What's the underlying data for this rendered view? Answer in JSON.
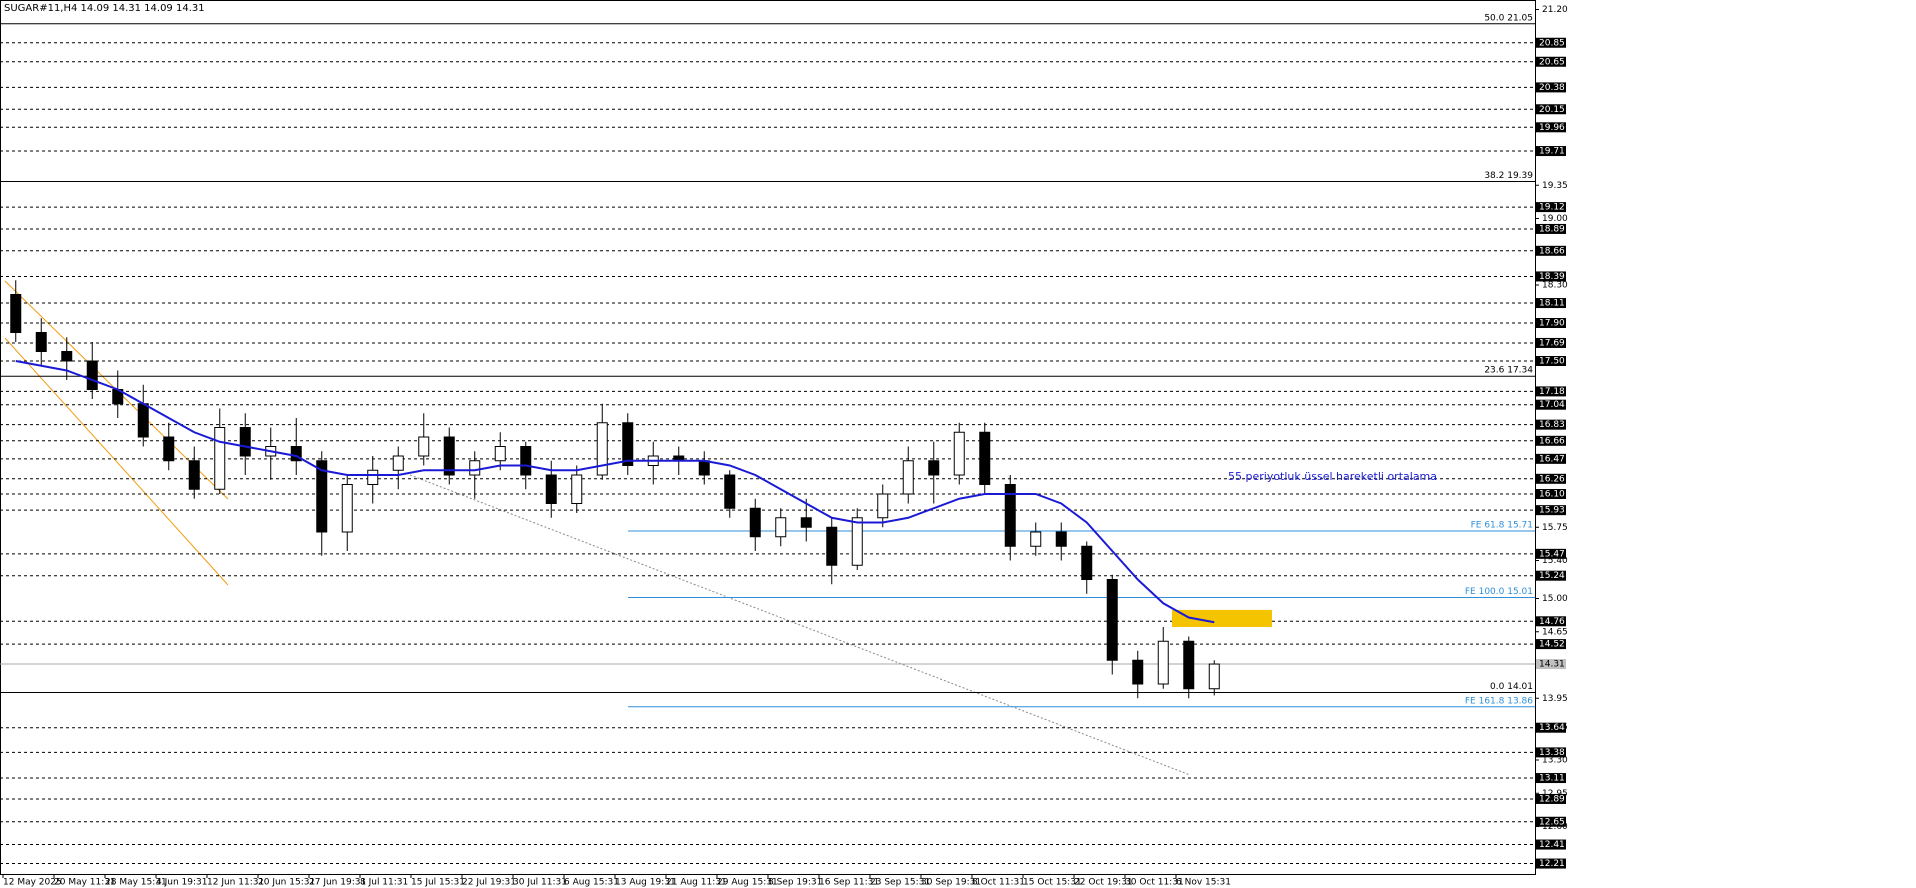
{
  "chart_data": {
    "type": "candlestick",
    "title": "SUGAR#11,H4  14.09 14.31 14.09 14.31",
    "categories": [
      "12 May 2025",
      null,
      "20 May 11:31",
      null,
      "28 May 15:31",
      null,
      "4 Jun 19:31",
      null,
      "12 Jun 11:31",
      null,
      "20 Jun 15:31",
      null,
      "27 Jun 19:31",
      null,
      "8 Jul 11:31",
      null,
      "15 Jul 15:31",
      null,
      "22 Jul 19:31",
      null,
      "30 Jul 11:31",
      null,
      "6 Aug 15:31",
      null,
      "13 Aug 19:31",
      null,
      "21 Aug 11:31",
      null,
      "29 Aug 15:31",
      null,
      "8 Sep 19:31",
      null,
      "16 Sep 11:31",
      null,
      "23 Sep 15:31",
      null,
      "30 Sep 19:31",
      null,
      "8 Oct 11:31",
      null,
      "15 Oct 15:31",
      null,
      "22 Oct 19:31",
      null,
      "30 Oct 11:31",
      null,
      "6 Nov 15:31",
      null
    ],
    "open": [
      18.2,
      17.8,
      17.6,
      17.5,
      17.2,
      17.05,
      16.7,
      16.45,
      16.15,
      16.8,
      16.5,
      16.6,
      16.45,
      15.7,
      16.2,
      16.35,
      16.5,
      16.7,
      16.3,
      16.45,
      16.6,
      16.3,
      16.0,
      16.3,
      16.85,
      16.4,
      16.5,
      16.45,
      16.3,
      15.95,
      15.65,
      15.85,
      15.75,
      15.35,
      15.85,
      16.1,
      16.45,
      16.3,
      16.75,
      16.2,
      15.55,
      15.7,
      15.55,
      15.2,
      14.35,
      14.1,
      14.55,
      14.05
    ],
    "high": [
      18.35,
      17.95,
      17.75,
      17.7,
      17.4,
      17.25,
      16.85,
      16.6,
      17.0,
      16.95,
      16.8,
      16.9,
      16.55,
      16.3,
      16.5,
      16.6,
      16.95,
      16.8,
      16.55,
      16.75,
      16.65,
      16.45,
      16.4,
      17.05,
      16.95,
      16.65,
      16.6,
      16.55,
      16.35,
      16.05,
      15.95,
      16.05,
      15.85,
      15.95,
      16.2,
      16.6,
      16.65,
      16.85,
      16.85,
      16.3,
      15.8,
      15.8,
      15.6,
      15.25,
      14.45,
      14.7,
      14.6,
      14.35
    ],
    "low": [
      17.7,
      17.45,
      17.3,
      17.1,
      16.9,
      16.6,
      16.35,
      16.05,
      16.1,
      16.3,
      16.25,
      16.3,
      15.45,
      15.5,
      16.0,
      16.15,
      16.4,
      16.2,
      16.05,
      16.35,
      16.15,
      15.85,
      15.9,
      16.25,
      16.3,
      16.2,
      16.3,
      16.2,
      15.85,
      15.5,
      15.55,
      15.6,
      15.15,
      15.3,
      15.75,
      16.0,
      16.0,
      16.2,
      16.1,
      15.4,
      15.45,
      15.4,
      15.05,
      14.2,
      13.95,
      14.05,
      13.95,
      13.98
    ],
    "close": [
      17.8,
      17.6,
      17.5,
      17.2,
      17.05,
      16.7,
      16.45,
      16.15,
      16.8,
      16.5,
      16.6,
      16.45,
      15.7,
      16.2,
      16.35,
      16.5,
      16.7,
      16.3,
      16.45,
      16.6,
      16.3,
      16.0,
      16.3,
      16.85,
      16.4,
      16.5,
      16.45,
      16.3,
      15.95,
      15.65,
      15.85,
      15.75,
      15.35,
      15.85,
      16.1,
      16.45,
      16.3,
      16.75,
      16.2,
      15.55,
      15.7,
      15.55,
      15.2,
      14.35,
      14.1,
      14.55,
      14.05,
      14.31
    ],
    "ema": {
      "color": "#1a1ad6",
      "values": [
        17.5,
        17.45,
        17.4,
        17.3,
        17.2,
        17.05,
        16.9,
        16.75,
        16.65,
        16.6,
        16.55,
        16.5,
        16.35,
        16.3,
        16.3,
        16.3,
        16.35,
        16.35,
        16.35,
        16.4,
        16.4,
        16.35,
        16.35,
        16.4,
        16.45,
        16.45,
        16.45,
        16.45,
        16.4,
        16.3,
        16.15,
        16.0,
        15.85,
        15.8,
        15.8,
        15.85,
        15.95,
        16.05,
        16.1,
        16.1,
        16.1,
        16.0,
        15.8,
        15.5,
        15.2,
        14.95,
        14.8,
        14.75
      ]
    },
    "annotation": {
      "text": "55 periyotluk üssel hareketli ortalama",
      "color": "#1a1ad6"
    },
    "zone": {
      "ylim": [
        14.7,
        14.88
      ],
      "color": "#f5c400"
    },
    "ylim": [
      12.1,
      21.3
    ],
    "yticks": [
      {
        "value": 21.2,
        "label": "21.20"
      },
      19.35,
      {
        "value": 19,
        "label": "19.00"
      },
      {
        "value": 18.3,
        "label": "18.30"
      },
      15.75,
      {
        "value": 15.4,
        "label": "15.40"
      },
      {
        "value": 15,
        "label": "15.00"
      },
      14.65,
      13.95,
      13.65,
      {
        "value": 13.3,
        "label": "13.30"
      },
      12.95,
      {
        "value": 12.6,
        "label": "12.60"
      }
    ],
    "levels": [
      20.85,
      20.65,
      20.38,
      20.15,
      19.96,
      19.71,
      19.12,
      18.89,
      18.66,
      18.39,
      18.11,
      {
        "value": 17.9,
        "label": "17.90"
      },
      17.69,
      {
        "value": 17.5,
        "label": "17.50"
      },
      17.18,
      17.04,
      16.83,
      16.66,
      16.47,
      16.26,
      {
        "value": 16.1,
        "label": "16.10"
      },
      15.93,
      15.47,
      15.24,
      14.76,
      14.52,
      13.64,
      13.38,
      13.11,
      12.89,
      12.65,
      12.41,
      12.21
    ],
    "fib_levels": [
      {
        "value": 21.05,
        "label": "50.0 21.05"
      },
      {
        "value": 19.39,
        "label": "38.2 19.39"
      },
      {
        "value": 17.34,
        "label": "23.6 17.34"
      },
      {
        "value": 14.01,
        "label": "0.0 14.01"
      }
    ],
    "fe_levels": {
      "color": "#2f8fd8",
      "items": [
        {
          "value": 15.71,
          "label": "FE 61.8 15.71"
        },
        {
          "value": 15.01,
          "label": "FE 100.0 15.01"
        },
        {
          "value": 13.86,
          "label": "FE 161.8 13.86"
        }
      ]
    },
    "current_price": {
      "value": 14.31,
      "label": "14.31"
    }
  }
}
